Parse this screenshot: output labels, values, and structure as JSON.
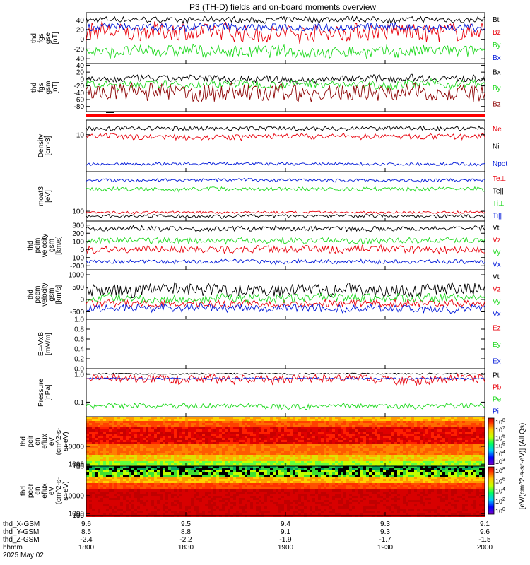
{
  "title": "P3 (TH-D) fields and on-board moments overview",
  "colors": {
    "black": "#000000",
    "red": "#e8000b",
    "green": "#1fd91f",
    "blue": "#0018d9",
    "darkred": "#8b0000"
  },
  "chart_data": [
    {
      "type": "line",
      "ylabel": [
        "thd",
        "fgs",
        "gse",
        "[nT]"
      ],
      "yticks": [
        "40",
        "20",
        "0",
        "-20",
        "-40"
      ],
      "ylim": [
        -50,
        55
      ],
      "series": [
        {
          "name": "Bt",
          "color": "black",
          "base": 40,
          "noise": 6
        },
        {
          "name": "Bz",
          "color": "red",
          "base": 15,
          "noise": 18
        },
        {
          "name": "By",
          "color": "green",
          "base": -25,
          "noise": 12
        },
        {
          "name": "Bx",
          "color": "blue",
          "base": 25,
          "noise": 8
        }
      ]
    },
    {
      "type": "line",
      "ylabel": [
        "thd",
        "fgs",
        "gsm",
        "[nT]"
      ],
      "yticks": [
        "40",
        "20",
        "0",
        "-20",
        "-40",
        "-60",
        "-80"
      ],
      "ylim": [
        -95,
        45
      ],
      "series": [
        {
          "name": "Bx",
          "color": "black",
          "base": 0,
          "noise": 10
        },
        {
          "name": "By",
          "color": "green",
          "base": -15,
          "noise": 12
        },
        {
          "name": "Bz",
          "color": "darkred",
          "base": -40,
          "noise": 25
        }
      ]
    },
    {
      "type": "line",
      "ylabel": [
        "Density",
        "[cm-3]"
      ],
      "yticks": [
        "10"
      ],
      "log": true,
      "ylim": [
        1,
        25
      ],
      "series": [
        {
          "name": "Ne",
          "color": "red",
          "base": 9,
          "noise": 1.5
        },
        {
          "name": "Ni",
          "color": "black",
          "base": 15,
          "noise": 2
        },
        {
          "name": "Npot",
          "color": "blue",
          "base": 1.6,
          "noise": 0.15
        }
      ]
    },
    {
      "type": "line",
      "ylabel": [
        "moat3",
        "[eV]"
      ],
      "yticks": [
        "100"
      ],
      "log": true,
      "ylim": [
        40,
        4000
      ],
      "series": [
        {
          "name": "Te⊥",
          "color": "red",
          "base": 90,
          "noise": 10
        },
        {
          "name": "Te||",
          "color": "black",
          "base": 65,
          "noise": 10
        },
        {
          "name": "Ti⊥",
          "color": "green",
          "base": 800,
          "noise": 150
        },
        {
          "name": "Ti||",
          "color": "blue",
          "base": 1800,
          "noise": 250
        }
      ]
    },
    {
      "type": "line",
      "ylabel": [
        "thd",
        "peim",
        "velocity",
        "gsm",
        "[km/s]"
      ],
      "yticks": [
        "300",
        "200",
        "100",
        "0",
        "-100",
        "-200"
      ],
      "ylim": [
        -250,
        350
      ],
      "series": [
        {
          "name": "Vt",
          "color": "black",
          "base": 260,
          "noise": 30
        },
        {
          "name": "Vz",
          "color": "red",
          "base": 0,
          "noise": 45
        },
        {
          "name": "Vy",
          "color": "green",
          "base": 110,
          "noise": 35
        },
        {
          "name": "Vx",
          "color": "blue",
          "base": -150,
          "noise": 25
        }
      ]
    },
    {
      "type": "line",
      "ylabel": [
        "thd",
        "peem",
        "velocity",
        "gsm",
        "[km/s]"
      ],
      "yticks": [
        "1000",
        "500",
        "0",
        "-500"
      ],
      "ylim": [
        -800,
        1200
      ],
      "series": [
        {
          "name": "Vt",
          "color": "black",
          "base": 400,
          "noise": 250
        },
        {
          "name": "Vz",
          "color": "red",
          "base": -150,
          "noise": 150
        },
        {
          "name": "Vy",
          "color": "green",
          "base": 50,
          "noise": 180
        },
        {
          "name": "Vx",
          "color": "blue",
          "base": -350,
          "noise": 160
        }
      ]
    },
    {
      "type": "line",
      "ylabel": [
        "E=-VxB",
        "[mV/m]"
      ],
      "yticks": [
        "1.0",
        "0.8",
        "0.6",
        "0.4",
        "0.2",
        "0.0"
      ],
      "ylim": [
        0,
        1
      ],
      "series": [
        {
          "name": "Ez",
          "color": "red",
          "base": null,
          "noise": 0
        },
        {
          "name": "Ey",
          "color": "green",
          "base": null,
          "noise": 0
        },
        {
          "name": "Ex",
          "color": "blue",
          "base": null,
          "noise": 0
        }
      ]
    },
    {
      "type": "line",
      "ylabel": [
        "Pressure",
        "[nPa]"
      ],
      "yticks": [
        "1.0",
        "0.1"
      ],
      "log": true,
      "ylim": [
        0.03,
        1.6
      ],
      "series": [
        {
          "name": "Pt",
          "color": "black",
          "base": 1.05,
          "noise": 0.06
        },
        {
          "name": "Pb",
          "color": "red",
          "base": 0.7,
          "noise": 0.25
        },
        {
          "name": "Pe",
          "color": "green",
          "base": 0.075,
          "noise": 0.015
        },
        {
          "name": "Pi",
          "color": "blue",
          "base": 0.7,
          "noise": 0.05
        }
      ]
    },
    {
      "type": "heatmap",
      "ylabel": [
        "thd",
        "peir",
        "en",
        "eflux",
        "eV",
        "(cm^2-s-",
        "sr-eV)"
      ],
      "yticks": [
        "10000",
        "1000",
        "100",
        "10"
      ],
      "ylim": [
        5,
        25000
      ]
    },
    {
      "type": "heatmap",
      "ylabel": [
        "thd",
        "peer",
        "en",
        "eflux",
        "eV",
        "(cm^2-s-",
        "sr-eV)"
      ],
      "yticks": [
        "10000",
        "1000",
        "100",
        "10"
      ],
      "ylim": [
        5,
        25000
      ]
    }
  ],
  "colorbar": {
    "label": "[eV/(cm^2-s-sr-eV)] (All Qs)",
    "ticks1": [
      "10^8",
      "10^7",
      "10^6",
      "10^5",
      "10^4",
      "10^3"
    ],
    "ticks2": [
      "10^8",
      "10^6",
      "10^4",
      "10^2",
      "10^0"
    ]
  },
  "xaxis": {
    "rows": [
      {
        "label": "thd_X-GSM",
        "values": [
          "9.6",
          "9.5",
          "9.4",
          "9.3",
          "9.1"
        ]
      },
      {
        "label": "thd_Y-GSM",
        "values": [
          "8.5",
          "8.8",
          "9.1",
          "9.3",
          "9.6"
        ]
      },
      {
        "label": "thd_Z-GSM",
        "values": [
          "-2.4",
          "-2.2",
          "-1.9",
          "-1.7",
          "-1.5"
        ]
      },
      {
        "label": "hhmm",
        "values": [
          "1800",
          "1830",
          "1900",
          "1930",
          "2000"
        ]
      }
    ],
    "date": "2025 May 02"
  }
}
